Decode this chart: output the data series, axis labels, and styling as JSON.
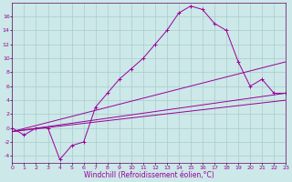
{
  "xlabel": "Windchill (Refroidissement éolien,°C)",
  "bg_color": "#cce8e8",
  "grid_color": "#aacccc",
  "line_color": "#990099",
  "xlim": [
    0,
    23
  ],
  "ylim": [
    -5,
    18
  ],
  "xticks": [
    0,
    1,
    2,
    3,
    4,
    5,
    6,
    7,
    8,
    9,
    10,
    11,
    12,
    13,
    14,
    15,
    16,
    17,
    18,
    19,
    20,
    21,
    22,
    23
  ],
  "yticks": [
    -4,
    -2,
    0,
    2,
    4,
    6,
    8,
    10,
    12,
    14,
    16
  ],
  "series": {
    "curve1": {
      "x": [
        0,
        1,
        2,
        3,
        4,
        5,
        6,
        7,
        8,
        9,
        10,
        11,
        12,
        13,
        14,
        15,
        16,
        17,
        18,
        19,
        20,
        21,
        22,
        23
      ],
      "y": [
        0,
        -1,
        0,
        0,
        -4.5,
        -2.5,
        -2,
        3,
        5,
        7,
        8.5,
        10,
        12,
        14,
        16.5,
        17.5,
        17,
        15,
        14,
        9.5,
        6,
        7,
        5,
        5
      ]
    },
    "curve2": {
      "x": [
        0,
        23
      ],
      "y": [
        -0.5,
        5
      ]
    },
    "curve3": {
      "x": [
        0,
        23
      ],
      "y": [
        -0.5,
        4
      ]
    },
    "curve4": {
      "x": [
        0,
        23
      ],
      "y": [
        -0.5,
        9.5
      ]
    }
  },
  "tick_fontsize": 4.5,
  "xlabel_fontsize": 5.5,
  "tick_color": "#990099",
  "spine_color": "#660066"
}
